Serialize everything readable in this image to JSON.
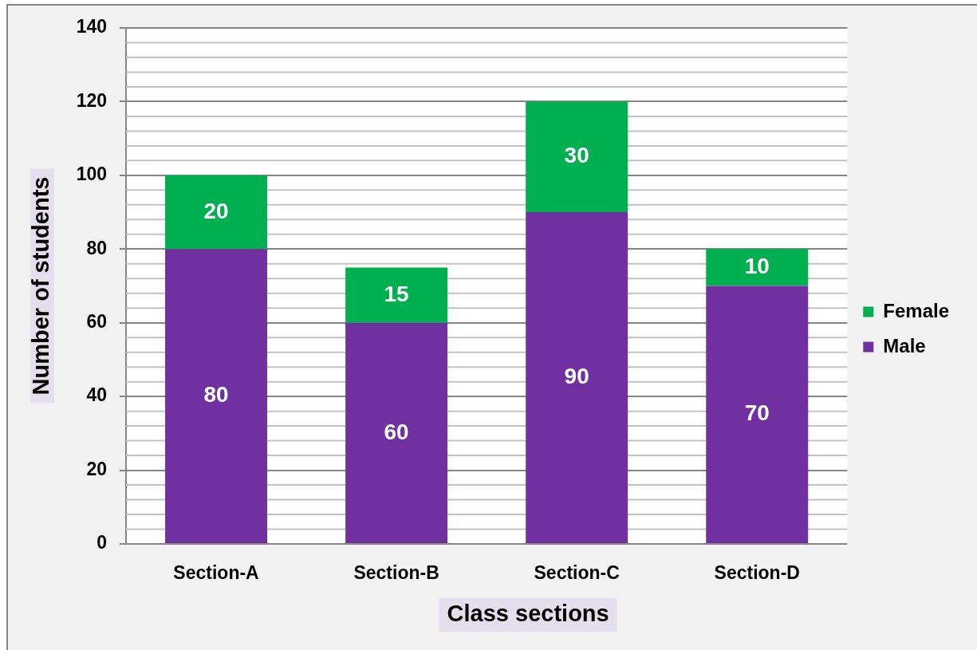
{
  "chart_data": {
    "type": "bar",
    "stacked": true,
    "xlabel": "Class sections",
    "ylabel": "Number of students",
    "categories": [
      "Section-A",
      "Section-B",
      "Section-C",
      "Section-D"
    ],
    "series": [
      {
        "name": "Male",
        "color": "#7030a0",
        "values": [
          80,
          60,
          90,
          70
        ]
      },
      {
        "name": "Female",
        "color": "#00b050",
        "values": [
          20,
          15,
          30,
          10
        ]
      }
    ],
    "ylim": [
      0,
      140
    ],
    "yticks": [
      0,
      20,
      40,
      60,
      80,
      100,
      120,
      140
    ],
    "grid": "y",
    "legend": "right",
    "data_labels": true
  }
}
